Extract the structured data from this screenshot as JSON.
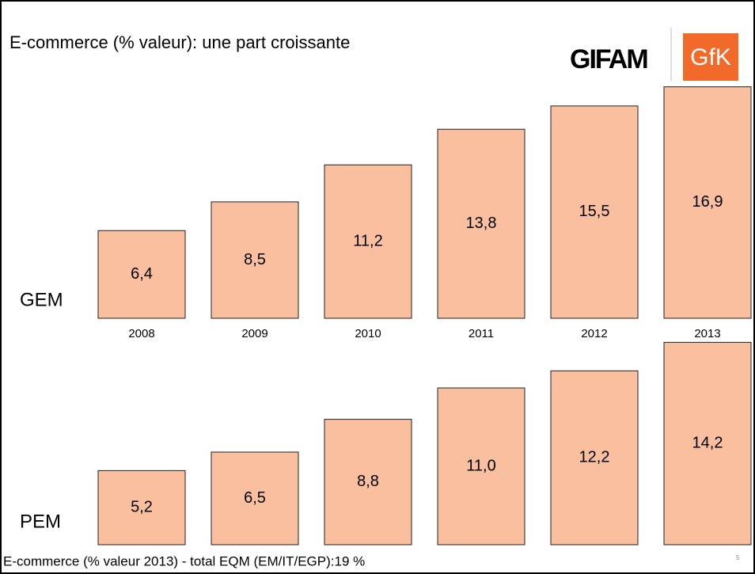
{
  "title": "E-commerce (% valeur): une part croissante",
  "logos": [
    "GIFAM",
    "GfK"
  ],
  "footer": "E-commerce (% valeur 2013) - total EQM (EM/IT/EGP):19 %",
  "page_number": "5",
  "chart_data": [
    {
      "type": "bar",
      "categories": [
        "2008",
        "2009",
        "2010",
        "2011",
        "2012",
        "2013"
      ],
      "series": [
        {
          "name": "GEM",
          "color": "#f9bf9f",
          "values": [
            6.4,
            8.5,
            11.2,
            13.8,
            15.5,
            16.9
          ],
          "value_labels": [
            "6,4",
            "8,5",
            "11,2",
            "13,8",
            "15,5",
            "16,9"
          ]
        }
      ]
    },
    {
      "type": "bar",
      "series": [
        {
          "name": "PEM",
          "color": "#f9bf9f",
          "values": [
            5.2,
            6.5,
            8.8,
            11.0,
            12.2,
            14.2
          ],
          "value_labels": [
            "5,2",
            "6,5",
            "8,8",
            "11,0",
            "12,2",
            "14,2"
          ]
        }
      ]
    }
  ]
}
